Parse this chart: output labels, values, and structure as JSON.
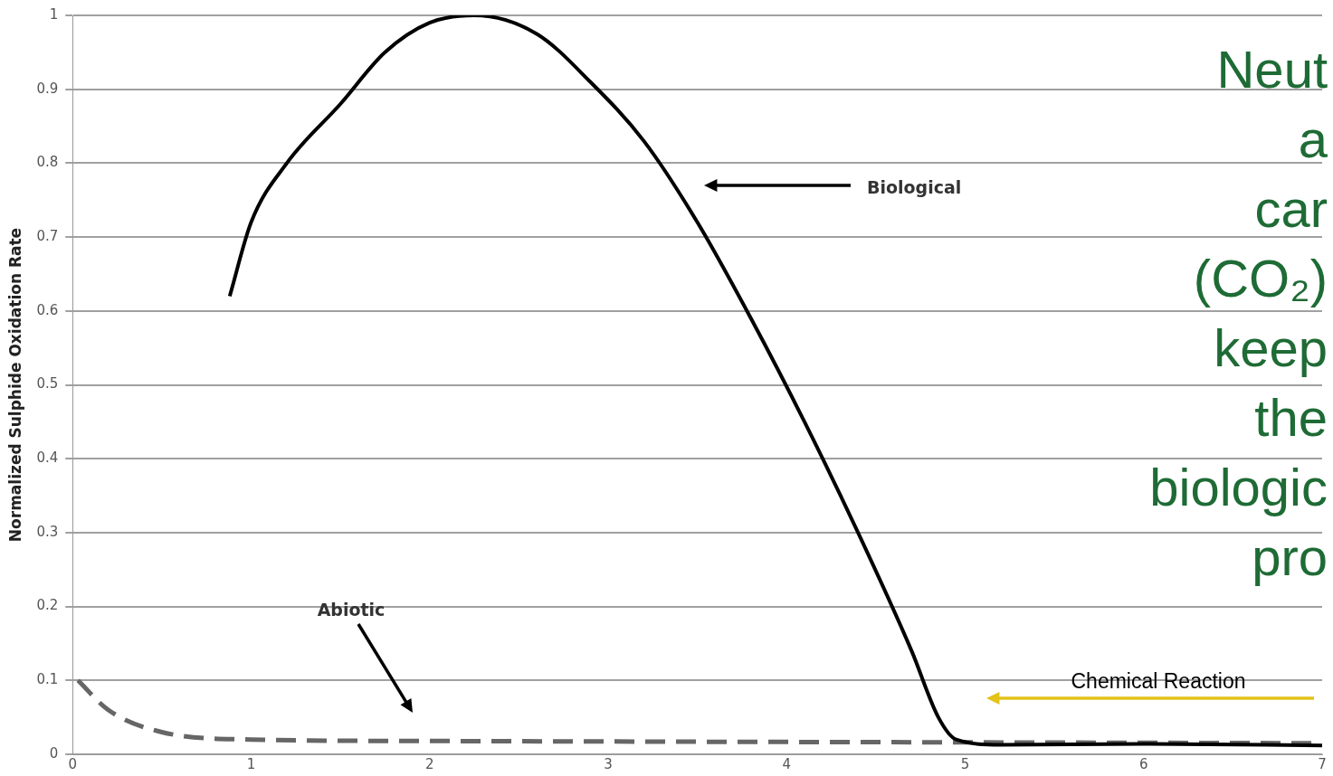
{
  "chart_data": {
    "type": "line",
    "ylabel": "Normalized Sulphide Oxidation Rate",
    "xlim": [
      0,
      7
    ],
    "xticks": [
      0,
      1,
      2,
      3,
      4,
      5,
      6,
      7
    ],
    "ylim": [
      0,
      1
    ],
    "yticks": [
      0,
      0.1,
      0.2,
      0.3,
      0.4,
      0.5,
      0.6,
      0.7,
      0.8,
      0.9,
      1
    ],
    "grid": "y",
    "legend": false,
    "marker": "none",
    "series": [
      {
        "color": "#000000",
        "line_style": "solid",
        "x": [
          0.88,
          1.0,
          1.2,
          1.5,
          1.75,
          2.0,
          2.25,
          2.6,
          2.9,
          3.2,
          3.5,
          3.8,
          4.1,
          4.4,
          4.7,
          4.85,
          4.95,
          5.2,
          6.0,
          7.0
        ],
        "values": [
          0.62,
          0.72,
          0.8,
          0.88,
          0.95,
          0.99,
          1.0,
          0.975,
          0.91,
          0.83,
          0.72,
          0.59,
          0.45,
          0.3,
          0.14,
          0.05,
          0.02,
          0.013,
          0.014,
          0.012
        ]
      },
      {
        "color": "#666666",
        "line_style": "dashed",
        "x": [
          0.03,
          0.2,
          0.5,
          1.0,
          2.0,
          7.0
        ],
        "values": [
          0.1,
          0.06,
          0.03,
          0.02,
          0.018,
          0.015
        ]
      }
    ],
    "annotations": [
      "Biological",
      "Abiotic",
      "Chemical Reaction",
      "Neut",
      "a",
      "car",
      "(CO₂)",
      "keep",
      "the",
      "biologic",
      "pro"
    ]
  }
}
